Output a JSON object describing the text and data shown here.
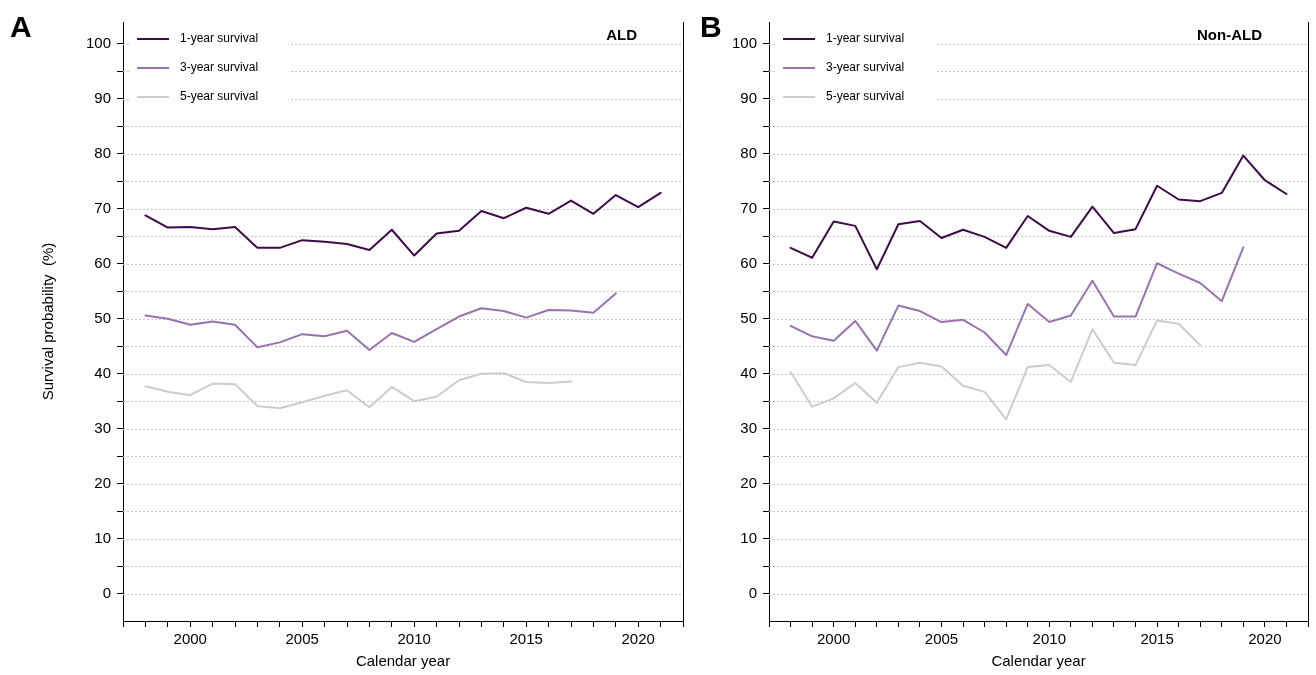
{
  "chart_data": [
    {
      "type": "line",
      "title": "A",
      "annotations": [
        "ALD"
      ],
      "xlabel": "Calendar year",
      "ylabel": "Survival probability  (%)",
      "xlim": [
        1997,
        2022
      ],
      "ylim": [
        -5,
        104
      ],
      "xticks": [
        {
          "value": 1997,
          "label": null
        },
        {
          "value": 1998,
          "label": null
        },
        {
          "value": 1999,
          "label": null
        },
        2000,
        {
          "value": 2001,
          "label": null
        },
        {
          "value": 2002,
          "label": null
        },
        {
          "value": 2003,
          "label": null
        },
        {
          "value": 2004,
          "label": null
        },
        2005,
        {
          "value": 2006,
          "label": null
        },
        {
          "value": 2007,
          "label": null
        },
        {
          "value": 2008,
          "label": null
        },
        {
          "value": 2009,
          "label": null
        },
        2010,
        {
          "value": 2011,
          "label": null
        },
        {
          "value": 2012,
          "label": null
        },
        {
          "value": 2013,
          "label": null
        },
        {
          "value": 2014,
          "label": null
        },
        2015,
        {
          "value": 2016,
          "label": null
        },
        {
          "value": 2017,
          "label": null
        },
        {
          "value": 2018,
          "label": null
        },
        {
          "value": 2019,
          "label": null
        },
        2020,
        {
          "value": 2021,
          "label": null
        },
        {
          "value": 2022,
          "label": null
        }
      ],
      "yticks": [
        0,
        {
          "value": 5,
          "label": null
        },
        10,
        {
          "value": 15,
          "label": null
        },
        20,
        {
          "value": 25,
          "label": null
        },
        30,
        {
          "value": 35,
          "label": null
        },
        40,
        {
          "value": 45,
          "label": null
        },
        50,
        {
          "value": 55,
          "label": null
        },
        60,
        {
          "value": 65,
          "label": null
        },
        70,
        {
          "value": 75,
          "label": null
        },
        80,
        {
          "value": 85,
          "label": null
        },
        90,
        {
          "value": 95,
          "label": null
        },
        100
      ],
      "grid": "y",
      "legend": "top left",
      "marker": "none",
      "line_style": "solid",
      "series": [
        {
          "name": "1-year survival",
          "color": "#3f0a4a",
          "x": [
            1998,
            1999,
            2000,
            2001,
            2002,
            2003,
            2004,
            2005,
            2006,
            2007,
            2008,
            2009,
            2010,
            2011,
            2012,
            2013,
            2014,
            2015,
            2016,
            2017,
            2018,
            2019,
            2020,
            2021
          ],
          "values": [
            68.8,
            66.6,
            66.7,
            66.3,
            66.7,
            62.9,
            62.9,
            64.3,
            64.0,
            63.6,
            62.5,
            66.2,
            61.5,
            65.5,
            66.0,
            69.6,
            68.3,
            70.2,
            69.1,
            71.5,
            69.1,
            72.5,
            70.3,
            72.9
          ]
        },
        {
          "name": "3-year survival",
          "color": "#9a72b0",
          "x": [
            1998,
            1999,
            2000,
            2001,
            2002,
            2003,
            2004,
            2005,
            2006,
            2007,
            2008,
            2009,
            2010,
            2011,
            2012,
            2013,
            2014,
            2015,
            2016,
            2017,
            2018,
            2019
          ],
          "values": [
            50.6,
            50.0,
            48.9,
            49.5,
            48.9,
            44.8,
            45.7,
            47.2,
            46.8,
            47.8,
            44.3,
            47.4,
            45.8,
            48.1,
            50.4,
            51.9,
            51.4,
            50.2,
            51.6,
            51.5,
            51.1,
            54.6
          ]
        },
        {
          "name": "5-year survival",
          "color": "#cccccc",
          "x": [
            1998,
            1999,
            2000,
            2001,
            2002,
            2003,
            2004,
            2005,
            2006,
            2007,
            2008,
            2009,
            2010,
            2011,
            2012,
            2013,
            2014,
            2015,
            2016,
            2017
          ],
          "values": [
            37.7,
            36.7,
            36.1,
            38.2,
            38.1,
            34.1,
            33.7,
            34.8,
            36.0,
            37.0,
            33.9,
            37.6,
            35.0,
            35.8,
            38.8,
            40.0,
            40.1,
            38.5,
            38.3,
            38.6
          ]
        }
      ]
    },
    {
      "type": "line",
      "title": "B",
      "annotations": [
        "Non-ALD"
      ],
      "xlabel": "Calendar year",
      "xlim": [
        1997,
        2022
      ],
      "ylim": [
        -5,
        104
      ],
      "xticks": [
        {
          "value": 1997,
          "label": null
        },
        {
          "value": 1998,
          "label": null
        },
        {
          "value": 1999,
          "label": null
        },
        2000,
        {
          "value": 2001,
          "label": null
        },
        {
          "value": 2002,
          "label": null
        },
        {
          "value": 2003,
          "label": null
        },
        {
          "value": 2004,
          "label": null
        },
        2005,
        {
          "value": 2006,
          "label": null
        },
        {
          "value": 2007,
          "label": null
        },
        {
          "value": 2008,
          "label": null
        },
        {
          "value": 2009,
          "label": null
        },
        2010,
        {
          "value": 2011,
          "label": null
        },
        {
          "value": 2012,
          "label": null
        },
        {
          "value": 2013,
          "label": null
        },
        {
          "value": 2014,
          "label": null
        },
        2015,
        {
          "value": 2016,
          "label": null
        },
        {
          "value": 2017,
          "label": null
        },
        {
          "value": 2018,
          "label": null
        },
        {
          "value": 2019,
          "label": null
        },
        2020,
        {
          "value": 2021,
          "label": null
        },
        {
          "value": 2022,
          "label": null
        }
      ],
      "yticks": [
        0,
        {
          "value": 5,
          "label": null
        },
        10,
        {
          "value": 15,
          "label": null
        },
        20,
        {
          "value": 25,
          "label": null
        },
        30,
        {
          "value": 35,
          "label": null
        },
        40,
        {
          "value": 45,
          "label": null
        },
        50,
        {
          "value": 55,
          "label": null
        },
        60,
        {
          "value": 65,
          "label": null
        },
        70,
        {
          "value": 75,
          "label": null
        },
        80,
        {
          "value": 85,
          "label": null
        },
        90,
        {
          "value": 95,
          "label": null
        },
        100
      ],
      "grid": "y",
      "legend": "top left",
      "marker": "none",
      "line_style": "solid",
      "series": [
        {
          "name": "1-year survival",
          "color": "#3f0a4a",
          "x": [
            1998,
            1999,
            2000,
            2001,
            2002,
            2003,
            2004,
            2005,
            2006,
            2007,
            2008,
            2009,
            2010,
            2011,
            2012,
            2013,
            2014,
            2015,
            2016,
            2017,
            2018,
            2019,
            2020,
            2021
          ],
          "values": [
            62.9,
            61.1,
            67.7,
            66.9,
            59.0,
            67.2,
            67.8,
            64.7,
            66.2,
            64.9,
            62.9,
            68.7,
            66.0,
            64.9,
            70.4,
            65.6,
            66.3,
            74.2,
            71.7,
            71.4,
            72.9,
            79.7,
            75.2,
            72.7
          ]
        },
        {
          "name": "3-year survival",
          "color": "#9a72b0",
          "x": [
            1998,
            1999,
            2000,
            2001,
            2002,
            2003,
            2004,
            2005,
            2006,
            2007,
            2008,
            2009,
            2010,
            2011,
            2012,
            2013,
            2014,
            2015,
            2016,
            2017,
            2018,
            2019
          ],
          "values": [
            48.7,
            46.8,
            46.0,
            49.6,
            44.2,
            52.4,
            51.4,
            49.4,
            49.8,
            47.5,
            43.4,
            52.7,
            49.4,
            50.6,
            56.9,
            50.4,
            50.4,
            60.1,
            58.2,
            56.5,
            53.2,
            63.0
          ]
        },
        {
          "name": "5-year survival",
          "color": "#cccccc",
          "x": [
            1998,
            1999,
            2000,
            2001,
            2002,
            2003,
            2004,
            2005,
            2006,
            2007,
            2008,
            2009,
            2010,
            2011,
            2012,
            2013,
            2014,
            2015,
            2016,
            2017
          ],
          "values": [
            40.3,
            34.0,
            35.5,
            38.3,
            34.7,
            41.2,
            42.0,
            41.3,
            37.8,
            36.7,
            31.7,
            41.2,
            41.6,
            38.5,
            48.1,
            42.0,
            41.6,
            49.7,
            49.1,
            45.2
          ]
        }
      ]
    }
  ]
}
